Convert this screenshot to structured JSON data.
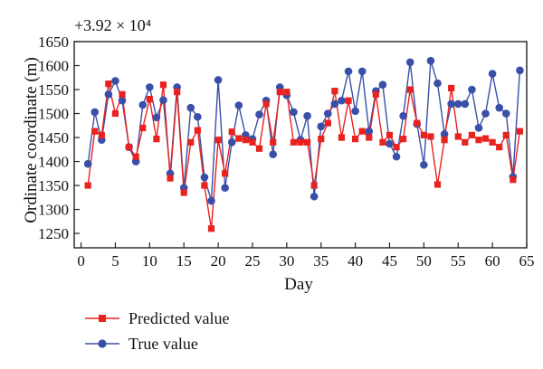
{
  "chart_data": {
    "type": "line",
    "axis_offset_label": "+3.92 × 10⁴",
    "xlabel": "Day",
    "ylabel": "Ordinate coordinate (m)",
    "xlim": [
      -1,
      65
    ],
    "ylim": [
      1220,
      1650
    ],
    "x_ticks": [
      0,
      5,
      10,
      15,
      20,
      25,
      30,
      35,
      40,
      45,
      50,
      55,
      60,
      65
    ],
    "y_ticks": [
      1250,
      1300,
      1350,
      1400,
      1450,
      1500,
      1550,
      1600,
      1650
    ],
    "grid": false,
    "legend_position": "bottom-left",
    "x": [
      1,
      2,
      3,
      4,
      5,
      6,
      7,
      8,
      9,
      10,
      11,
      12,
      13,
      14,
      15,
      16,
      17,
      18,
      19,
      20,
      21,
      22,
      23,
      24,
      25,
      26,
      27,
      28,
      29,
      30,
      31,
      32,
      33,
      34,
      35,
      36,
      37,
      38,
      39,
      40,
      41,
      42,
      43,
      44,
      45,
      46,
      47,
      48,
      49,
      50,
      51,
      52,
      53,
      54,
      55,
      56,
      57,
      58,
      59,
      60,
      61,
      62,
      63,
      64
    ],
    "series": [
      {
        "name": "Predicted value",
        "color": "#e8231f",
        "marker": "square",
        "values": [
          1350,
          1463,
          1455,
          1562,
          1500,
          1540,
          1430,
          1410,
          1470,
          1530,
          1447,
          1560,
          1365,
          1545,
          1335,
          1440,
          1465,
          1350,
          1260,
          1445,
          1375,
          1462,
          1448,
          1445,
          1440,
          1427,
          1520,
          1440,
          1545,
          1545,
          1440,
          1440,
          1440,
          1350,
          1447,
          1480,
          1547,
          1450,
          1527,
          1447,
          1463,
          1450,
          1540,
          1440,
          1455,
          1430,
          1447,
          1550,
          1480,
          1455,
          1452,
          1352,
          1445,
          1553,
          1452,
          1440,
          1455,
          1445,
          1448,
          1440,
          1430,
          1455,
          1362,
          1463
        ]
      },
      {
        "name": "True value",
        "color": "#3a4fa8",
        "marker": "circle",
        "values": [
          1395,
          1503,
          1445,
          1540,
          1568,
          1527,
          1430,
          1400,
          1518,
          1555,
          1492,
          1528,
          1375,
          1555,
          1345,
          1512,
          1493,
          1367,
          1318,
          1570,
          1345,
          1440,
          1517,
          1455,
          1447,
          1498,
          1527,
          1415,
          1555,
          1538,
          1503,
          1445,
          1495,
          1327,
          1473,
          1500,
          1520,
          1527,
          1588,
          1505,
          1588,
          1463,
          1547,
          1560,
          1437,
          1410,
          1495,
          1607,
          1478,
          1393,
          1610,
          1563,
          1457,
          1520,
          1520,
          1520,
          1550,
          1470,
          1500,
          1583,
          1512,
          1500,
          1368,
          1590
        ]
      }
    ]
  }
}
